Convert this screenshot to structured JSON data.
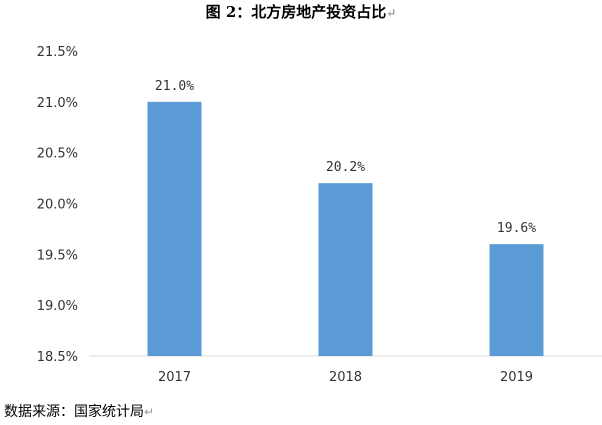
{
  "title": "图 2：北方房地产投资占比",
  "source_note": "数据来源：国家统计局",
  "paragraph_mark": "↵",
  "colors": {
    "bar": "#5b9bd5",
    "axis": "#d9d9d9",
    "text": "#333333"
  },
  "chart_data": {
    "type": "bar",
    "title": "图 2：北方房地产投资占比",
    "xlabel": "",
    "ylabel": "",
    "categories": [
      "2017",
      "2018",
      "2019"
    ],
    "values": [
      21.0,
      20.2,
      19.6
    ],
    "data_labels": [
      "21.0%",
      "20.2%",
      "19.6%"
    ],
    "ylim": [
      18.5,
      21.5
    ],
    "y_ticks": [
      18.5,
      19.0,
      19.5,
      20.0,
      20.5,
      21.0,
      21.5
    ],
    "y_tick_labels": [
      "18.5%",
      "19.0%",
      "19.5%",
      "20.0%",
      "20.5%",
      "21.0%",
      "21.5%"
    ],
    "grid": false,
    "legend": "none"
  }
}
